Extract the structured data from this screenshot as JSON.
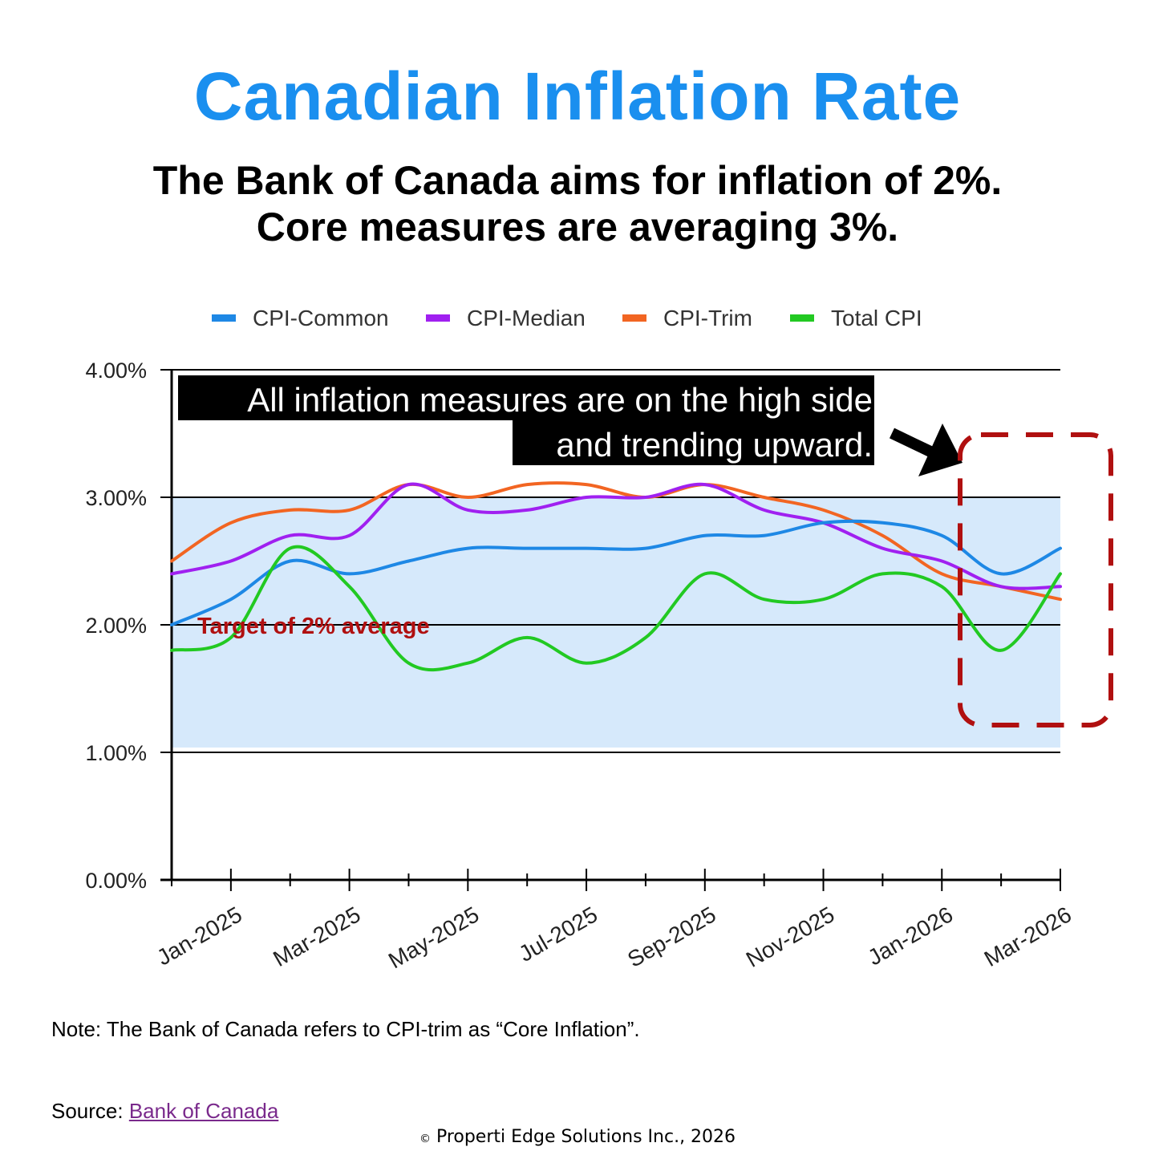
{
  "title": "Canadian Inflation Rate",
  "subtitle": {
    "line1": "The Bank of Canada aims for inflation of 2%.",
    "line2": "Core measures are averaging 3%."
  },
  "chart_data": {
    "type": "line",
    "x": [
      "Dec-2024",
      "Jan-2025",
      "Feb-2025",
      "Mar-2025",
      "Apr-2025",
      "May-2025",
      "Jun-2025",
      "Jul-2025",
      "Aug-2025",
      "Sep-2025",
      "Oct-2025",
      "Nov-2025",
      "Dec-2025",
      "Jan-2026",
      "Feb-2026",
      "Mar-2026"
    ],
    "xticklabels": [
      "Jan-2025",
      "Mar-2025",
      "May-2025",
      "Jul-2025",
      "Sep-2025",
      "Nov-2025",
      "Jan-2026",
      "Mar-2026"
    ],
    "yticklabels": [
      "0.00%",
      "1.00%",
      "2.00%",
      "3.00%",
      "4.00%"
    ],
    "ylim": [
      0,
      4
    ],
    "series": [
      {
        "name": "CPI-Common",
        "color": "#1e88e5",
        "values": [
          2.0,
          2.2,
          2.5,
          2.4,
          2.5,
          2.6,
          2.6,
          2.6,
          2.6,
          2.7,
          2.7,
          2.8,
          2.8,
          2.7,
          2.4,
          2.6
        ]
      },
      {
        "name": "CPI-Median",
        "color": "#a020f0",
        "values": [
          2.4,
          2.5,
          2.7,
          2.7,
          3.1,
          2.9,
          2.9,
          3.0,
          3.0,
          3.1,
          2.9,
          2.8,
          2.6,
          2.5,
          2.3,
          2.3
        ]
      },
      {
        "name": "CPI-Trim",
        "color": "#f26522",
        "values": [
          2.5,
          2.8,
          2.9,
          2.9,
          3.1,
          3.0,
          3.1,
          3.1,
          3.0,
          3.1,
          3.0,
          2.9,
          2.7,
          2.4,
          2.3,
          2.2
        ]
      },
      {
        "name": "Total CPI",
        "color": "#22c922",
        "values": [
          1.8,
          1.9,
          2.6,
          2.3,
          1.7,
          1.7,
          1.9,
          1.7,
          1.9,
          2.4,
          2.2,
          2.2,
          2.4,
          2.3,
          1.8,
          2.4
        ]
      }
    ],
    "target_band": [
      1,
      3
    ],
    "target_label": "Target of 2% average",
    "annotation": {
      "line1": "All inflation measures are on the high side",
      "line2": "and trending upward."
    },
    "legend_position": "top",
    "colors": {
      "band": "#d6e9fb",
      "target_label": "#b01010",
      "highlight_box": "#b01010"
    }
  },
  "note": "Note: The Bank of Canada refers to CPI-trim as “Core Inflation”.",
  "source": {
    "label": "Source: ",
    "link_text": "Bank of Canada"
  },
  "copyright": {
    "symbol": "©",
    "text": "Properti Edge Solutions Inc., 2026"
  }
}
